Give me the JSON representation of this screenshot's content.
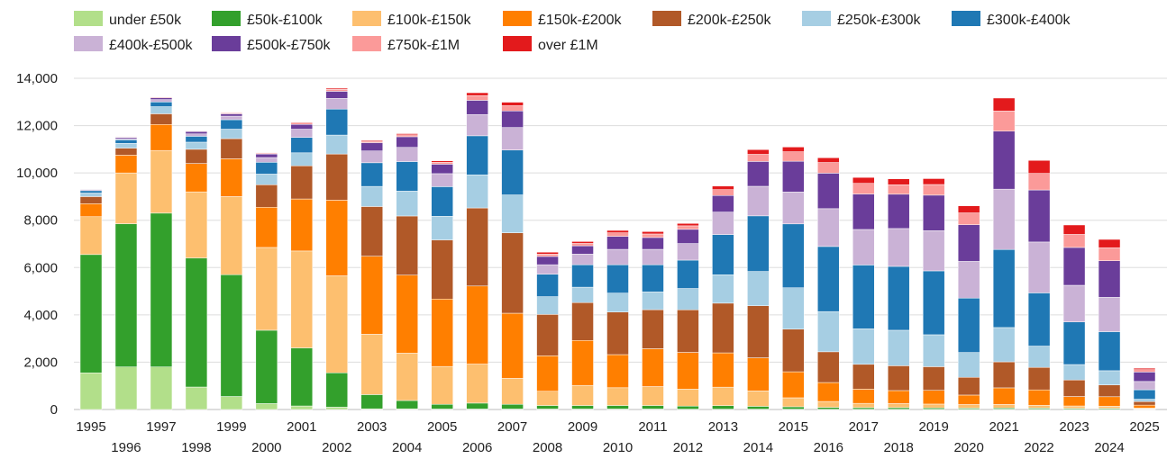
{
  "chart_data": {
    "type": "bar",
    "stacked": true,
    "title": "",
    "xlabel": "",
    "ylabel": "",
    "ylim": [
      0,
      14000
    ],
    "yticks": [
      0,
      2000,
      4000,
      6000,
      8000,
      10000,
      12000,
      14000
    ],
    "ytick_labels": [
      "0",
      "2,000",
      "4,000",
      "6,000",
      "8,000",
      "10,000",
      "12,000",
      "14,000"
    ],
    "grid": true,
    "legend_position": "top",
    "categories": [
      "1995",
      "1996",
      "1997",
      "1998",
      "1999",
      "2000",
      "2001",
      "2002",
      "2003",
      "2004",
      "2005",
      "2006",
      "2007",
      "2008",
      "2009",
      "2010",
      "2011",
      "2012",
      "2013",
      "2014",
      "2015",
      "2016",
      "2017",
      "2018",
      "2019",
      "2020",
      "2021",
      "2022",
      "2023",
      "2024",
      "2025"
    ],
    "series": [
      {
        "name": "under £50k",
        "color": "#b2df8a",
        "values": [
          1550,
          1800,
          1800,
          950,
          550,
          250,
          150,
          100,
          30,
          30,
          20,
          20,
          20,
          20,
          20,
          20,
          20,
          15,
          15,
          15,
          15,
          10,
          10,
          10,
          10,
          10,
          15,
          10,
          10,
          10,
          5
        ]
      },
      {
        "name": "£50k-£100k",
        "color": "#33a02c",
        "values": [
          5000,
          6050,
          6500,
          5450,
          5150,
          3100,
          2450,
          1450,
          600,
          350,
          200,
          250,
          200,
          150,
          150,
          150,
          150,
          130,
          150,
          120,
          100,
          80,
          70,
          70,
          60,
          50,
          50,
          50,
          40,
          40,
          20
        ]
      },
      {
        "name": "£100k-£150k",
        "color": "#fdbf6f",
        "values": [
          1600,
          2150,
          2650,
          2800,
          3300,
          3500,
          4100,
          4100,
          2550,
          2000,
          1600,
          1650,
          1100,
          600,
          850,
          750,
          800,
          720,
          780,
          650,
          380,
          250,
          180,
          170,
          160,
          150,
          150,
          120,
          100,
          90,
          40
        ]
      },
      {
        "name": "£150k-£200k",
        "color": "#ff7f00",
        "values": [
          550,
          750,
          1100,
          1200,
          1600,
          1700,
          2200,
          3200,
          3300,
          3300,
          2850,
          3300,
          2750,
          1500,
          1900,
          1400,
          1600,
          1550,
          1450,
          1400,
          1100,
          800,
          600,
          550,
          580,
          400,
          700,
          650,
          400,
          400,
          120
        ]
      },
      {
        "name": "£200k-£250k",
        "color": "#b15928",
        "values": [
          300,
          300,
          450,
          600,
          850,
          950,
          1400,
          1950,
          2100,
          2500,
          2500,
          3300,
          3400,
          1750,
          1600,
          1800,
          1650,
          1800,
          2100,
          2200,
          1800,
          1300,
          1050,
          1050,
          1000,
          750,
          1100,
          950,
          700,
          500,
          150
        ]
      },
      {
        "name": "£250k-£300k",
        "color": "#a6cee3",
        "values": [
          150,
          200,
          300,
          300,
          400,
          450,
          550,
          800,
          850,
          1050,
          1000,
          1400,
          1600,
          750,
          650,
          800,
          750,
          900,
          1200,
          1450,
          1750,
          1700,
          1500,
          1500,
          1350,
          1050,
          1450,
          900,
          650,
          600,
          100
        ]
      },
      {
        "name": "£300k-£400k",
        "color": "#1f78b4",
        "values": [
          100,
          150,
          200,
          250,
          400,
          500,
          650,
          1100,
          1000,
          1250,
          1250,
          1650,
          1900,
          950,
          950,
          1200,
          1150,
          1200,
          1700,
          2350,
          2700,
          2750,
          2700,
          2700,
          2700,
          2300,
          3300,
          2250,
          1800,
          1650,
          400
        ]
      },
      {
        "name": "£400k-£500k",
        "color": "#cab2d6",
        "values": [
          50,
          50,
          100,
          100,
          150,
          200,
          350,
          450,
          500,
          600,
          550,
          900,
          950,
          400,
          450,
          650,
          650,
          700,
          950,
          1250,
          1350,
          1600,
          1500,
          1600,
          1700,
          1550,
          2550,
          2150,
          1550,
          1450,
          350
        ]
      },
      {
        "name": "£500k-£750k",
        "color": "#6a3d9a",
        "values": [
          20,
          50,
          80,
          100,
          100,
          150,
          200,
          300,
          350,
          450,
          400,
          600,
          700,
          350,
          350,
          550,
          500,
          600,
          700,
          1050,
          1300,
          1500,
          1500,
          1450,
          1500,
          1550,
          2450,
          2200,
          1600,
          1550,
          400
        ]
      },
      {
        "name": "£750k-£1M",
        "color": "#fb9a99",
        "values": [
          10,
          20,
          30,
          20,
          40,
          40,
          60,
          80,
          60,
          80,
          80,
          200,
          220,
          100,
          100,
          150,
          150,
          150,
          250,
          300,
          400,
          450,
          450,
          400,
          450,
          500,
          850,
          700,
          550,
          550,
          100
        ]
      },
      {
        "name": "over £1M",
        "color": "#e31a1c",
        "values": [
          5,
          10,
          20,
          20,
          20,
          20,
          30,
          50,
          40,
          50,
          60,
          120,
          150,
          80,
          80,
          100,
          100,
          100,
          150,
          200,
          200,
          200,
          250,
          250,
          250,
          300,
          550,
          550,
          400,
          350,
          60
        ]
      }
    ]
  }
}
